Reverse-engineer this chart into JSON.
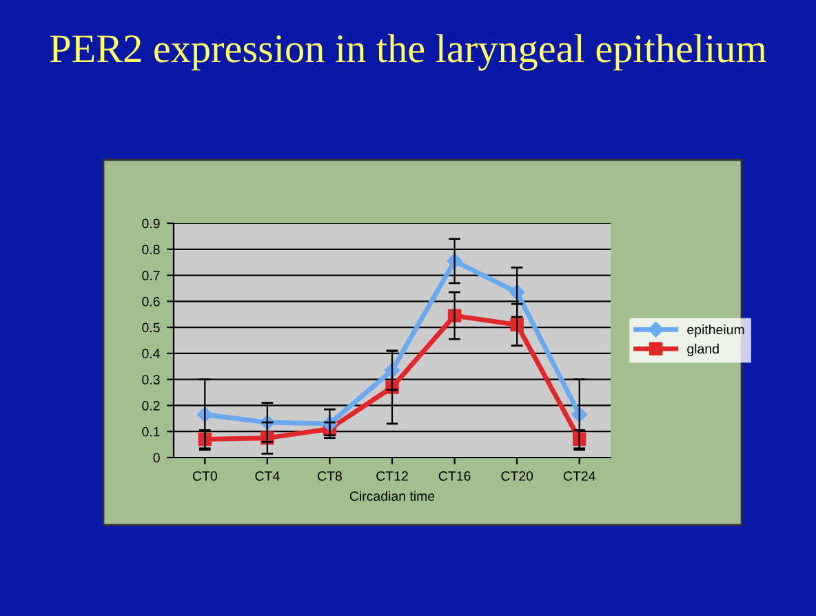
{
  "chart_data": {
    "type": "line",
    "title": "PER2 expression in the laryngeal epithelium",
    "xlabel": "Circadian time",
    "categories": [
      "CT0",
      "CT4",
      "CT8",
      "CT12",
      "CT16",
      "CT20",
      "CT24"
    ],
    "series": [
      {
        "name": "epitheium",
        "color": "#6aa8f0",
        "marker": "diamond",
        "values": [
          0.165,
          0.135,
          0.13,
          0.335,
          0.755,
          0.635,
          0.165
        ],
        "errors": [
          0.135,
          0.075,
          0.055,
          0.075,
          0.085,
          0.095,
          0.135
        ]
      },
      {
        "name": "gland",
        "color": "#e0282c",
        "marker": "square",
        "values": [
          0.07,
          0.075,
          0.11,
          0.27,
          0.545,
          0.51,
          0.07
        ],
        "errors": [
          0.035,
          0.06,
          0.025,
          0.14,
          0.09,
          0.08,
          0.035
        ]
      }
    ],
    "ylim": [
      0,
      0.9
    ],
    "yticks": [
      0,
      0.1,
      0.2,
      0.3,
      0.4,
      0.5,
      0.6,
      0.7,
      0.8,
      0.9
    ],
    "grid": "y",
    "legend": "right"
  }
}
